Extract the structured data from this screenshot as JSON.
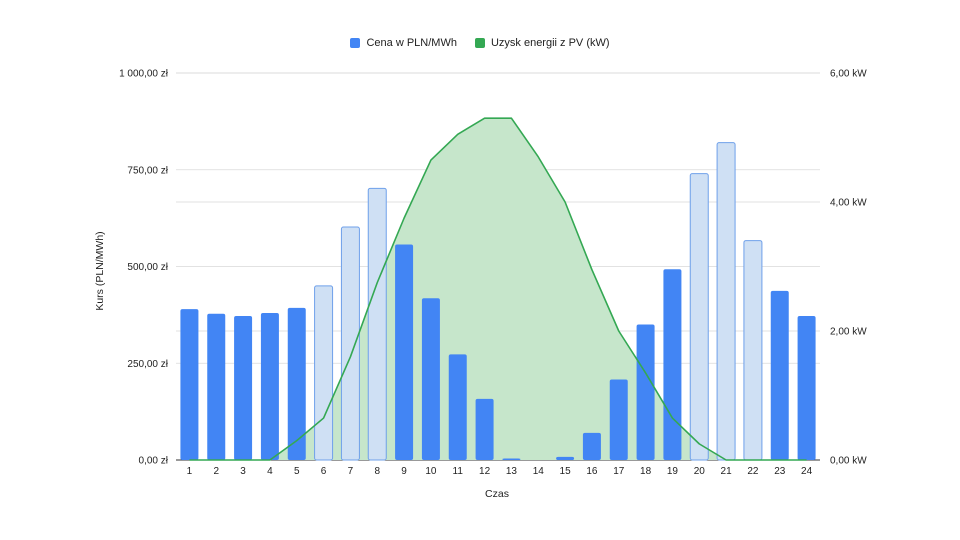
{
  "chart_data": {
    "type": "bar",
    "legend": {
      "placement": "top",
      "items": [
        {
          "label": "Cena w PLN/MWh",
          "color": "#4285f4"
        },
        {
          "label": "Uzysk energii z PV (kW)",
          "color": "#34a853"
        }
      ]
    },
    "xlabel": "Czas",
    "ylabel": "Kurs (PLN/MWh)",
    "categories": [
      "1",
      "2",
      "3",
      "4",
      "5",
      "6",
      "7",
      "8",
      "9",
      "10",
      "11",
      "12",
      "13",
      "14",
      "15",
      "16",
      "17",
      "18",
      "19",
      "20",
      "21",
      "22",
      "23",
      "24"
    ],
    "series": [
      {
        "name": "Cena w PLN/MWh",
        "type": "bar",
        "axis": "left",
        "values": [
          390,
          378,
          372,
          380,
          393,
          450,
          602,
          702,
          557,
          418,
          273,
          158,
          4,
          0,
          8,
          70,
          208,
          350,
          493,
          740,
          820,
          567,
          437,
          372
        ],
        "highlighted": [
          false,
          false,
          false,
          false,
          false,
          true,
          true,
          true,
          false,
          false,
          false,
          false,
          false,
          false,
          false,
          false,
          false,
          false,
          false,
          true,
          true,
          true,
          false,
          false
        ]
      },
      {
        "name": "Uzysk energii z PV (kW)",
        "type": "area",
        "axis": "right",
        "values": [
          0,
          0,
          0,
          0,
          0.3,
          0.65,
          1.6,
          2.75,
          3.75,
          4.65,
          5.05,
          5.3,
          5.3,
          4.7,
          4.0,
          2.95,
          2.0,
          1.35,
          0.65,
          0.25,
          0,
          0,
          0,
          0
        ]
      }
    ],
    "yaxis_left": {
      "ylim": [
        0,
        1000
      ],
      "ticks": [
        0,
        250,
        500,
        750,
        1000
      ],
      "tick_labels": [
        "0,00 zł",
        "250,00 zł",
        "500,00 zł",
        "750,00 zł",
        "1 000,00 zł"
      ]
    },
    "yaxis_right": {
      "ylim": [
        0,
        6
      ],
      "ticks": [
        0,
        2,
        4,
        6
      ],
      "tick_labels": [
        "0,00 kW",
        "2,00 kW",
        "4,00 kW",
        "6,00 kW"
      ]
    },
    "grid": true,
    "colors": {
      "bar": "#4285f4",
      "bar_highlight_fill": "#cfe0f4",
      "bar_highlight_stroke": "#6fa0ea",
      "line": "#34a853",
      "area_fill": "#c6e6cb",
      "grid": "#d9d9d9"
    }
  }
}
